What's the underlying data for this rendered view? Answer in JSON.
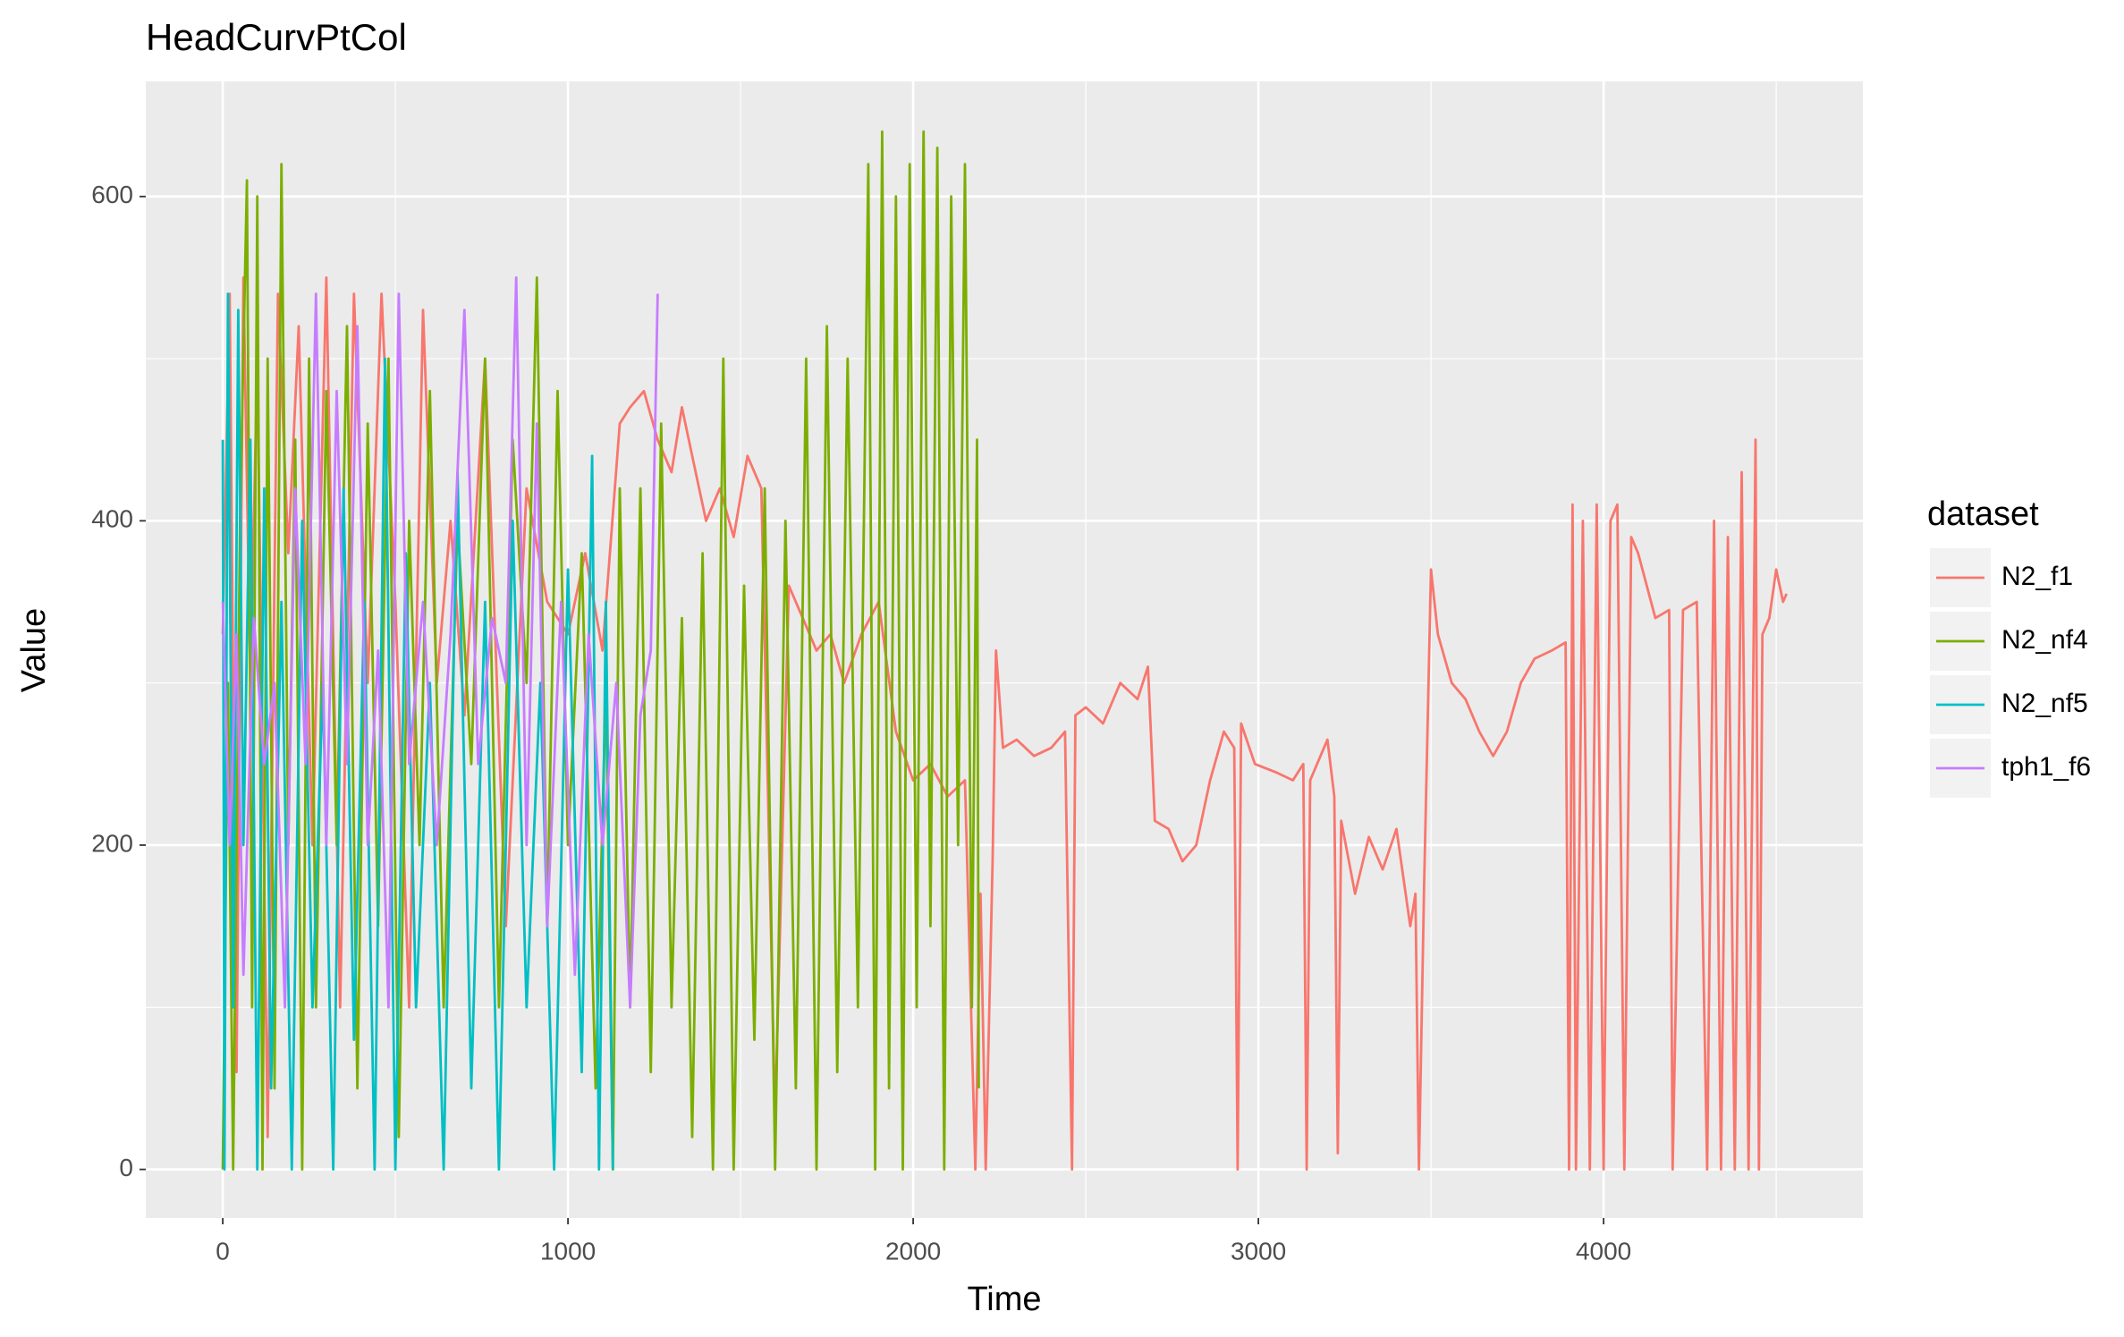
{
  "chart_data": {
    "type": "line",
    "title": "HeadCurvPtCol",
    "x_label": "Time",
    "y_label": "Value",
    "legend_title": "dataset",
    "legend_position": "right",
    "grid": true,
    "xlim": [
      -223,
      4751
    ],
    "ylim": [
      -30,
      671
    ],
    "xticks": [
      0,
      1000,
      2000,
      3000,
      4000
    ],
    "yticks": [
      0,
      200,
      400,
      600
    ],
    "series": [
      {
        "name": "N2_f1",
        "color": "#F8766D",
        "x": [
          0,
          20,
          40,
          60,
          80,
          100,
          130,
          160,
          190,
          220,
          260,
          300,
          340,
          380,
          420,
          460,
          500,
          540,
          580,
          620,
          660,
          700,
          760,
          820,
          880,
          940,
          1000,
          1050,
          1100,
          1150,
          1180,
          1220,
          1260,
          1300,
          1330,
          1360,
          1400,
          1440,
          1480,
          1520,
          1560,
          1600,
          1640,
          1680,
          1720,
          1760,
          1800,
          1850,
          1900,
          1950,
          2000,
          2050,
          2100,
          2150,
          2180,
          2195,
          2210,
          2230,
          2240,
          2260,
          2300,
          2350,
          2400,
          2440,
          2460,
          2470,
          2500,
          2550,
          2600,
          2650,
          2680,
          2700,
          2740,
          2780,
          2820,
          2860,
          2900,
          2930,
          2940,
          2950,
          2990,
          3050,
          3100,
          3130,
          3140,
          3150,
          3200,
          3220,
          3230,
          3240,
          3280,
          3320,
          3360,
          3400,
          3440,
          3455,
          3465,
          3480,
          3500,
          3520,
          3560,
          3600,
          3640,
          3680,
          3720,
          3760,
          3800,
          3850,
          3890,
          3900,
          3910,
          3920,
          3940,
          3960,
          3980,
          4000,
          4020,
          4040,
          4060,
          4080,
          4100,
          4150,
          4190,
          4200,
          4230,
          4270,
          4300,
          4320,
          4340,
          4360,
          4380,
          4400,
          4420,
          4440,
          4450,
          4460,
          4480,
          4500,
          4520,
          4530
        ],
        "values": [
          330,
          540,
          60,
          550,
          300,
          500,
          20,
          540,
          380,
          520,
          200,
          550,
          100,
          540,
          300,
          540,
          350,
          100,
          530,
          300,
          400,
          280,
          500,
          150,
          420,
          350,
          330,
          380,
          320,
          460,
          470,
          480,
          450,
          430,
          470,
          440,
          400,
          420,
          390,
          440,
          420,
          30,
          360,
          340,
          320,
          330,
          300,
          330,
          350,
          270,
          240,
          250,
          230,
          240,
          0,
          170,
          0,
          190,
          320,
          260,
          265,
          255,
          260,
          270,
          0,
          280,
          285,
          275,
          300,
          290,
          310,
          215,
          210,
          190,
          200,
          240,
          270,
          260,
          0,
          275,
          250,
          245,
          240,
          250,
          0,
          240,
          265,
          230,
          10,
          215,
          170,
          205,
          185,
          210,
          150,
          170,
          0,
          175,
          370,
          330,
          300,
          290,
          270,
          255,
          270,
          300,
          315,
          320,
          325,
          0,
          410,
          0,
          400,
          0,
          410,
          0,
          400,
          410,
          0,
          390,
          380,
          340,
          345,
          0,
          345,
          350,
          0,
          400,
          0,
          390,
          0,
          430,
          0,
          450,
          0,
          330,
          340,
          370,
          350,
          355
        ]
      },
      {
        "name": "N2_nf4",
        "color": "#7CAE00",
        "x": [
          0,
          15,
          30,
          50,
          70,
          85,
          100,
          115,
          130,
          150,
          170,
          190,
          210,
          230,
          250,
          270,
          300,
          330,
          360,
          390,
          420,
          450,
          480,
          510,
          540,
          570,
          600,
          640,
          680,
          720,
          760,
          800,
          840,
          880,
          910,
          940,
          970,
          1000,
          1040,
          1080,
          1110,
          1130,
          1150,
          1180,
          1210,
          1240,
          1270,
          1300,
          1330,
          1360,
          1390,
          1420,
          1450,
          1480,
          1510,
          1540,
          1570,
          1600,
          1630,
          1660,
          1690,
          1720,
          1750,
          1780,
          1810,
          1840,
          1870,
          1890,
          1910,
          1930,
          1950,
          1970,
          1990,
          2010,
          2030,
          2050,
          2070,
          2090,
          2110,
          2130,
          2150,
          2170,
          2185,
          2190
        ],
        "values": [
          0,
          300,
          0,
          400,
          610,
          100,
          600,
          0,
          500,
          50,
          620,
          200,
          450,
          0,
          500,
          100,
          480,
          200,
          520,
          50,
          460,
          150,
          500,
          20,
          400,
          200,
          480,
          100,
          400,
          250,
          500,
          100,
          450,
          300,
          550,
          150,
          480,
          200,
          380,
          50,
          300,
          0,
          420,
          100,
          420,
          60,
          460,
          100,
          340,
          20,
          380,
          0,
          500,
          0,
          360,
          80,
          420,
          0,
          400,
          50,
          500,
          0,
          520,
          60,
          500,
          100,
          620,
          0,
          640,
          50,
          600,
          0,
          620,
          100,
          640,
          150,
          630,
          0,
          600,
          200,
          620,
          100,
          450,
          50
        ]
      },
      {
        "name": "N2_nf5",
        "color": "#00BFC4",
        "x": [
          0,
          5,
          15,
          30,
          45,
          60,
          80,
          100,
          120,
          140,
          170,
          200,
          230,
          260,
          290,
          320,
          350,
          380,
          410,
          440,
          470,
          500,
          530,
          560,
          600,
          640,
          680,
          720,
          760,
          800,
          840,
          880,
          920,
          960,
          1000,
          1040,
          1070,
          1090,
          1110,
          1130
        ],
        "values": [
          450,
          0,
          540,
          100,
          530,
          200,
          450,
          0,
          420,
          50,
          350,
          0,
          400,
          100,
          300,
          0,
          420,
          80,
          350,
          0,
          500,
          0,
          380,
          100,
          300,
          0,
          430,
          50,
          350,
          0,
          400,
          100,
          300,
          0,
          370,
          60,
          440,
          0,
          350,
          0
        ]
      },
      {
        "name": "tph1_f6",
        "color": "#C77CFF",
        "x": [
          0,
          20,
          40,
          60,
          90,
          120,
          150,
          180,
          210,
          240,
          270,
          300,
          330,
          360,
          390,
          420,
          450,
          480,
          510,
          540,
          580,
          620,
          660,
          700,
          740,
          780,
          820,
          850,
          880,
          910,
          940,
          980,
          1020,
          1060,
          1100,
          1140,
          1180,
          1210,
          1240,
          1260
        ],
        "values": [
          350,
          200,
          330,
          120,
          340,
          250,
          300,
          100,
          420,
          250,
          540,
          200,
          480,
          250,
          520,
          200,
          320,
          100,
          540,
          250,
          350,
          200,
          330,
          530,
          250,
          340,
          300,
          550,
          200,
          460,
          150,
          350,
          120,
          330,
          200,
          300,
          100,
          280,
          320,
          540
        ]
      }
    ]
  }
}
